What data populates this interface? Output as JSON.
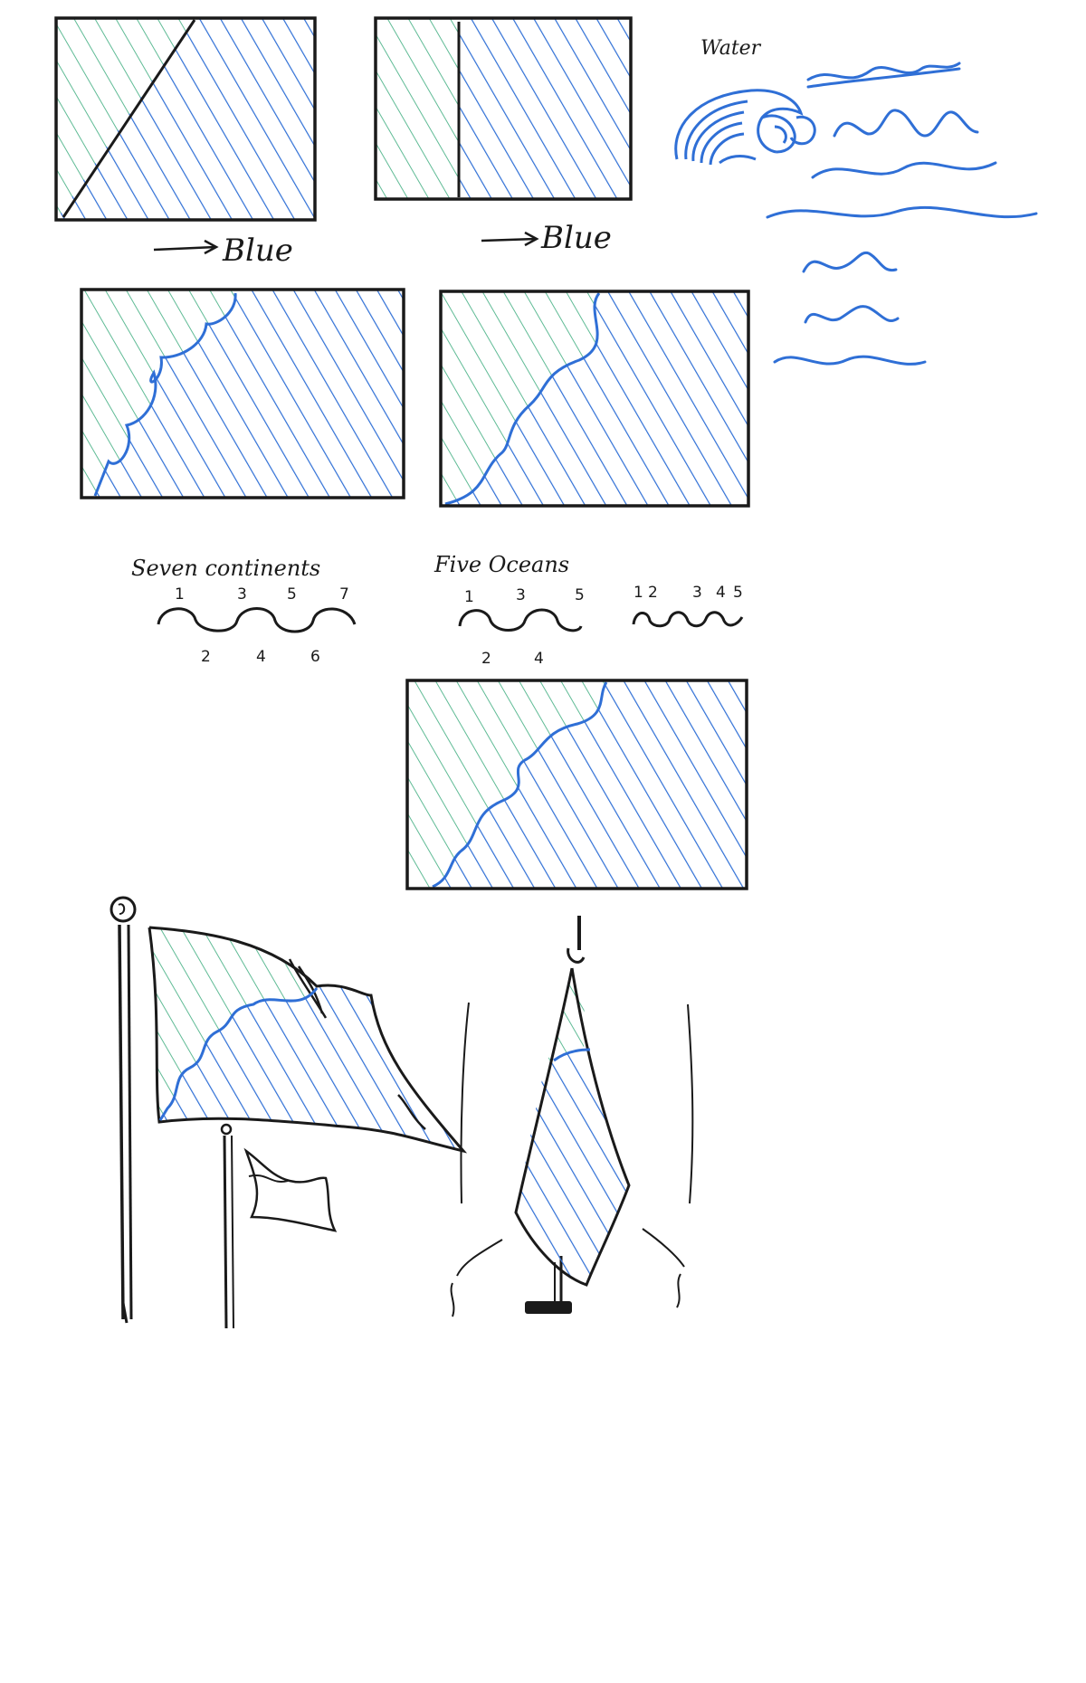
{
  "palette": {
    "ink": "#1a1a1a",
    "green_ink": "#4fae8a",
    "blue_ink": "#2f6fd6",
    "paper": "#ffffff"
  },
  "notes": {
    "blue_top_left": "Blue",
    "blue_top_right": "Blue",
    "water": "Water",
    "seven_continents": "Seven continents",
    "five_oceans": "Five Oceans"
  },
  "counts": {
    "seven_top": [
      "1",
      "3",
      "5",
      "7"
    ],
    "seven_bottom": [
      "2",
      "4",
      "6"
    ],
    "five_top": [
      "1",
      "3",
      "5"
    ],
    "five_bottom": [
      "2",
      "4"
    ],
    "five_alt_top": [
      "1",
      "2",
      "3",
      "4",
      "5"
    ]
  }
}
